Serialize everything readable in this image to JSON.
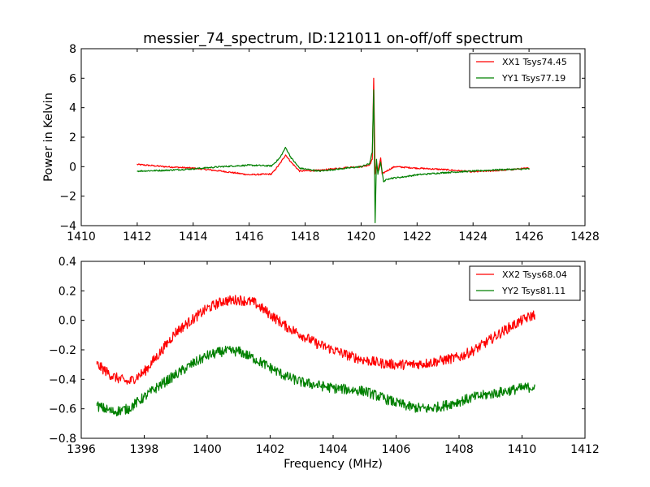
{
  "chart_data": [
    {
      "type": "line",
      "title": "messier_74_spectrum, ID:121011 on-off/off spectrum",
      "xlabel": "",
      "ylabel": "Power in Kelvin",
      "xlim": [
        1410,
        1428
      ],
      "ylim": [
        -4,
        8
      ],
      "xticks": [
        "1410",
        "1412",
        "1414",
        "1416",
        "1418",
        "1420",
        "1422",
        "1424",
        "1426",
        "1428"
      ],
      "yticks": [
        "−4",
        "−2",
        "0",
        "2",
        "4",
        "6",
        "8"
      ],
      "legend": "top-right",
      "grid": false,
      "series": [
        {
          "name": "XX1 Tsys74.45",
          "color": "#ff0000",
          "x": [
            1412.0,
            1413.0,
            1414.0,
            1415.0,
            1416.0,
            1416.8,
            1417.1,
            1417.3,
            1417.5,
            1417.8,
            1418.5,
            1419.0,
            1419.5,
            1420.0,
            1420.3,
            1420.4,
            1420.45,
            1420.5,
            1420.55,
            1420.6,
            1420.7,
            1420.75,
            1420.9,
            1421.2,
            1422.0,
            1423.0,
            1424.0,
            1425.0,
            1426.0
          ],
          "y": [
            0.15,
            0.0,
            -0.1,
            -0.3,
            -0.55,
            -0.5,
            0.2,
            0.8,
            0.3,
            -0.3,
            -0.25,
            -0.15,
            -0.05,
            0.0,
            0.1,
            0.5,
            6.0,
            -0.5,
            0.2,
            -0.3,
            0.6,
            -0.5,
            -0.3,
            0.0,
            -0.1,
            -0.2,
            -0.35,
            -0.25,
            -0.1
          ]
        },
        {
          "name": "YY1 Tsys77.19",
          "color": "#008000",
          "x": [
            1412.0,
            1413.0,
            1414.0,
            1415.0,
            1416.0,
            1416.8,
            1417.1,
            1417.3,
            1417.5,
            1417.8,
            1418.5,
            1419.0,
            1419.5,
            1420.0,
            1420.3,
            1420.4,
            1420.45,
            1420.5,
            1420.55,
            1420.6,
            1420.7,
            1420.8,
            1421.0,
            1421.5,
            1422.0,
            1423.0,
            1424.0,
            1425.0,
            1426.0
          ],
          "y": [
            -0.3,
            -0.25,
            -0.15,
            0.0,
            0.1,
            0.05,
            0.6,
            1.3,
            0.6,
            -0.1,
            -0.3,
            -0.2,
            -0.1,
            0.0,
            0.2,
            1.0,
            5.2,
            -3.8,
            0.5,
            -0.5,
            0.3,
            -1.0,
            -0.8,
            -0.7,
            -0.55,
            -0.4,
            -0.3,
            -0.2,
            -0.15
          ]
        }
      ]
    },
    {
      "type": "line",
      "title": "",
      "xlabel": "Frequency (MHz)",
      "ylabel": "",
      "xlim": [
        1396,
        1412
      ],
      "ylim": [
        -0.8,
        0.4
      ],
      "xticks": [
        "1396",
        "1398",
        "1400",
        "1402",
        "1404",
        "1406",
        "1408",
        "1410",
        "1412"
      ],
      "yticks": [
        "−0.8",
        "−0.6",
        "−0.4",
        "−0.2",
        "0.0",
        "0.2",
        "0.4"
      ],
      "legend": "top-right",
      "grid": false,
      "series": [
        {
          "name": "XX2 Tsys68.04",
          "color": "#ff0000",
          "x": [
            1396.5,
            1397.0,
            1397.5,
            1398.0,
            1398.5,
            1399.0,
            1399.5,
            1400.0,
            1400.5,
            1401.0,
            1401.5,
            1402.0,
            1402.5,
            1403.0,
            1403.5,
            1404.0,
            1404.5,
            1405.0,
            1405.5,
            1406.0,
            1406.5,
            1407.0,
            1407.5,
            1408.0,
            1408.5,
            1409.0,
            1409.5,
            1410.0,
            1410.4
          ],
          "y": [
            -0.3,
            -0.38,
            -0.42,
            -0.35,
            -0.22,
            -0.08,
            0.0,
            0.08,
            0.13,
            0.14,
            0.12,
            0.04,
            -0.04,
            -0.1,
            -0.16,
            -0.2,
            -0.24,
            -0.27,
            -0.29,
            -0.3,
            -0.3,
            -0.29,
            -0.27,
            -0.25,
            -0.2,
            -0.13,
            -0.06,
            0.0,
            0.04
          ]
        },
        {
          "name": "YY2 Tsys81.11",
          "color": "#008000",
          "x": [
            1396.5,
            1397.0,
            1397.5,
            1398.0,
            1398.5,
            1399.0,
            1399.5,
            1400.0,
            1400.5,
            1401.0,
            1401.5,
            1402.0,
            1402.5,
            1403.0,
            1403.5,
            1404.0,
            1404.5,
            1405.0,
            1405.5,
            1406.0,
            1406.5,
            1407.0,
            1407.5,
            1408.0,
            1408.5,
            1409.0,
            1409.5,
            1410.0,
            1410.4
          ],
          "y": [
            -0.58,
            -0.62,
            -0.6,
            -0.52,
            -0.44,
            -0.37,
            -0.3,
            -0.24,
            -0.21,
            -0.21,
            -0.26,
            -0.32,
            -0.38,
            -0.42,
            -0.44,
            -0.46,
            -0.47,
            -0.48,
            -0.52,
            -0.56,
            -0.59,
            -0.6,
            -0.58,
            -0.55,
            -0.52,
            -0.5,
            -0.48,
            -0.46,
            -0.45
          ]
        }
      ]
    }
  ]
}
